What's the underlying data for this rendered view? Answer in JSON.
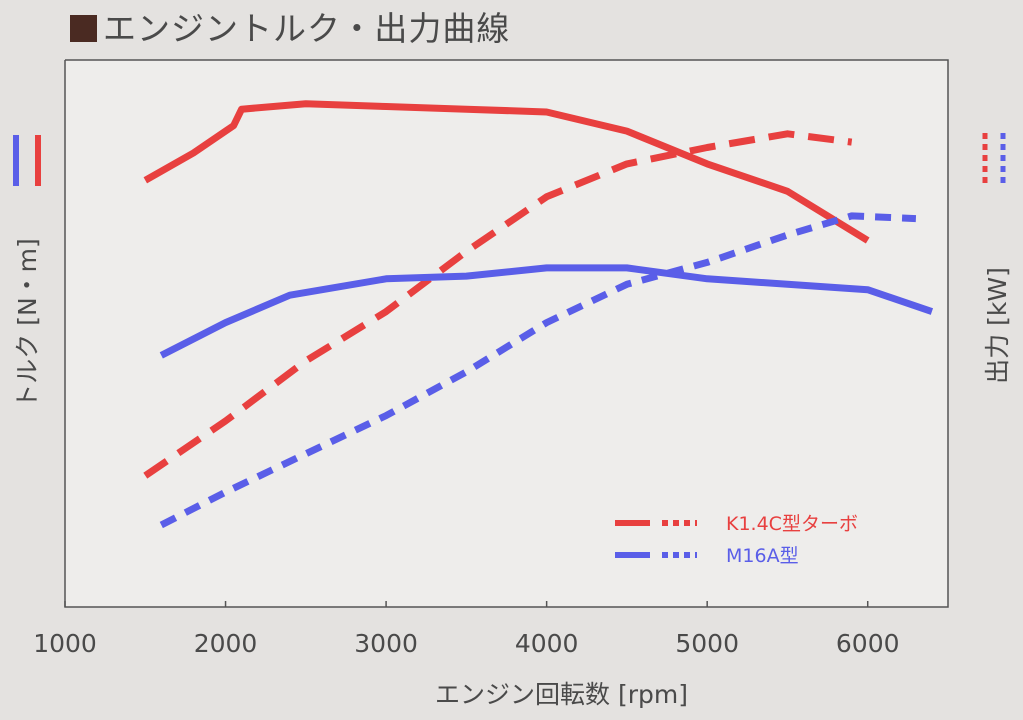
{
  "title": "■エンジントルク・出力曲線",
  "colors": {
    "k14c": "#e8403f",
    "m16a": "#5a5ee8",
    "axis": "#555555",
    "plot_bg": "#eeedeb"
  },
  "chart_data": {
    "type": "line",
    "title": "エンジントルク・出力曲線",
    "xlabel": "エンジン回転数 [rpm]",
    "ylabel_left": "トルク [N・m]",
    "ylabel_right": "出力 [kW]",
    "xlim": [
      1000,
      6500
    ],
    "xticks": [
      1000,
      2000,
      3000,
      4000,
      5000,
      6000
    ],
    "y_ticks_shown": false,
    "grid": false,
    "legend": "bottom-right",
    "legend_entries": [
      {
        "label": "K1.4C型ターボ",
        "engine": "k14c"
      },
      {
        "label": "M16A型",
        "engine": "m16a"
      }
    ],
    "series": [
      {
        "engine": "k14c",
        "measure": "torque",
        "style": "solid",
        "x": [
          1500,
          1800,
          2050,
          2100,
          2500,
          3000,
          3500,
          4000,
          4500,
          5000,
          5500,
          6000
        ],
        "y": [
          0.78,
          0.83,
          0.88,
          0.91,
          0.92,
          0.915,
          0.91,
          0.905,
          0.87,
          0.81,
          0.76,
          0.67
        ]
      },
      {
        "engine": "k14c",
        "measure": "power",
        "style": "dashed",
        "x": [
          1500,
          2000,
          2500,
          3000,
          3500,
          4000,
          4500,
          5000,
          5500,
          5900
        ],
        "y": [
          0.24,
          0.34,
          0.45,
          0.54,
          0.65,
          0.75,
          0.81,
          0.84,
          0.865,
          0.85
        ]
      },
      {
        "engine": "m16a",
        "measure": "torque",
        "style": "solid",
        "x": [
          1600,
          2000,
          2400,
          3000,
          3500,
          4000,
          4500,
          5000,
          5500,
          6000,
          6400
        ],
        "y": [
          0.46,
          0.52,
          0.57,
          0.6,
          0.605,
          0.62,
          0.62,
          0.6,
          0.59,
          0.58,
          0.54
        ]
      },
      {
        "engine": "m16a",
        "measure": "power",
        "style": "dashed",
        "x": [
          1600,
          2000,
          2500,
          3000,
          3500,
          4000,
          4500,
          5000,
          5500,
          5900,
          6300
        ],
        "y": [
          0.15,
          0.21,
          0.28,
          0.35,
          0.43,
          0.52,
          0.59,
          0.63,
          0.68,
          0.715,
          0.71
        ]
      }
    ]
  }
}
